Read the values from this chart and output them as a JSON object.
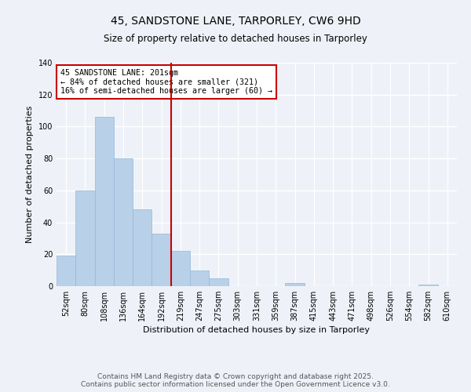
{
  "title": "45, SANDSTONE LANE, TARPORLEY, CW6 9HD",
  "subtitle": "Size of property relative to detached houses in Tarporley",
  "xlabel": "Distribution of detached houses by size in Tarporley",
  "ylabel": "Number of detached properties",
  "categories": [
    "52sqm",
    "80sqm",
    "108sqm",
    "136sqm",
    "164sqm",
    "192sqm",
    "219sqm",
    "247sqm",
    "275sqm",
    "303sqm",
    "331sqm",
    "359sqm",
    "387sqm",
    "415sqm",
    "443sqm",
    "471sqm",
    "498sqm",
    "526sqm",
    "554sqm",
    "582sqm",
    "610sqm"
  ],
  "values": [
    19,
    60,
    106,
    80,
    48,
    33,
    22,
    10,
    5,
    0,
    0,
    0,
    2,
    0,
    0,
    0,
    0,
    0,
    0,
    1,
    0
  ],
  "bar_color": "#b8d0e8",
  "bar_edgecolor": "#93b8d8",
  "property_line_x": 5.5,
  "ann_line1": "45 SANDSTONE LANE: 201sqm",
  "ann_line2": "← 84% of detached houses are smaller (321)",
  "ann_line3": "16% of semi-detached houses are larger (60) →",
  "annotation_box_color": "#cc0000",
  "ylim": [
    0,
    140
  ],
  "yticks": [
    0,
    20,
    40,
    60,
    80,
    100,
    120,
    140
  ],
  "footer_line1": "Contains HM Land Registry data © Crown copyright and database right 2025.",
  "footer_line2": "Contains public sector information licensed under the Open Government Licence v3.0.",
  "bg_color": "#eef2f8",
  "plot_bg_color": "#eef2f8",
  "grid_color": "#ffffff",
  "title_fontsize": 10,
  "subtitle_fontsize": 8.5,
  "axis_label_fontsize": 8,
  "tick_fontsize": 7,
  "footer_fontsize": 6.5
}
